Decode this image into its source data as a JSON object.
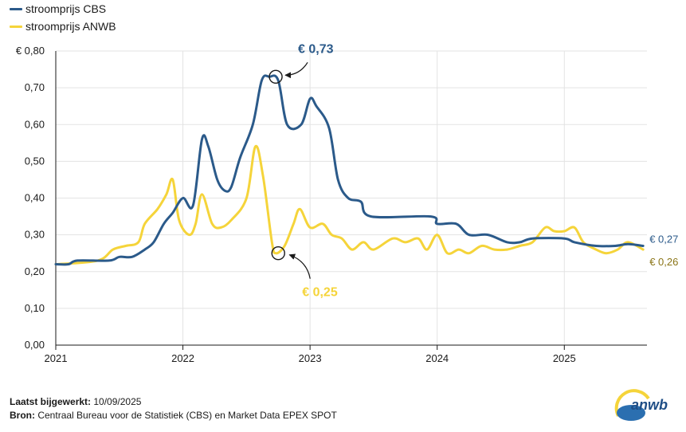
{
  "legend": [
    {
      "label": "stroomprijs CBS",
      "color": "#2b5a8a"
    },
    {
      "label": "stroomprijs ANWB",
      "color": "#f5d43a"
    }
  ],
  "footer": {
    "updated_label": "Laatst bijgewerkt:",
    "updated_value": "10/09/2025",
    "source_label": "Bron:",
    "source_value": "Centraal Bureau voor de Statistiek (CBS) en Market Data EPEX SPOT"
  },
  "logo": {
    "text": "anwb",
    "icon": "anwb-logo"
  },
  "chart_data": {
    "type": "line",
    "title": "",
    "xlabel": "",
    "ylabel": "",
    "xlim": [
      2021.0,
      2025.65
    ],
    "ylim": [
      0,
      0.8
    ],
    "grid": true,
    "legend_position": "top-left",
    "x_ticks": [
      2021,
      2022,
      2023,
      2024,
      2025
    ],
    "y_ticks": [
      {
        "value": 0.0,
        "label": "0,00"
      },
      {
        "value": 0.1,
        "label": "0,10"
      },
      {
        "value": 0.2,
        "label": "0,20"
      },
      {
        "value": 0.3,
        "label": "0,30"
      },
      {
        "value": 0.4,
        "label": "0,40"
      },
      {
        "value": 0.5,
        "label": "0,50"
      },
      {
        "value": 0.6,
        "label": "0,60"
      },
      {
        "value": 0.7,
        "label": "0,70"
      },
      {
        "value": 0.8,
        "label": "€ 0,80"
      }
    ],
    "series": [
      {
        "name": "stroomprijs CBS",
        "color": "#2b5a8a",
        "end_label": "€ 0,27",
        "points": [
          [
            2021.0,
            0.22
          ],
          [
            2021.1,
            0.22
          ],
          [
            2021.17,
            0.23
          ],
          [
            2021.42,
            0.23
          ],
          [
            2021.5,
            0.24
          ],
          [
            2021.6,
            0.24
          ],
          [
            2021.7,
            0.26
          ],
          [
            2021.77,
            0.28
          ],
          [
            2021.85,
            0.33
          ],
          [
            2021.92,
            0.36
          ],
          [
            2022.0,
            0.4
          ],
          [
            2022.08,
            0.38
          ],
          [
            2022.15,
            0.56
          ],
          [
            2022.2,
            0.54
          ],
          [
            2022.27,
            0.45
          ],
          [
            2022.33,
            0.42
          ],
          [
            2022.38,
            0.43
          ],
          [
            2022.45,
            0.51
          ],
          [
            2022.55,
            0.6
          ],
          [
            2022.62,
            0.72
          ],
          [
            2022.68,
            0.73
          ],
          [
            2022.75,
            0.72
          ],
          [
            2022.82,
            0.6
          ],
          [
            2022.93,
            0.6
          ],
          [
            2023.0,
            0.67
          ],
          [
            2023.05,
            0.65
          ],
          [
            2023.15,
            0.59
          ],
          [
            2023.22,
            0.45
          ],
          [
            2023.3,
            0.4
          ],
          [
            2023.4,
            0.39
          ],
          [
            2023.48,
            0.35
          ],
          [
            2023.95,
            0.35
          ],
          [
            2024.0,
            0.33
          ],
          [
            2024.15,
            0.33
          ],
          [
            2024.25,
            0.3
          ],
          [
            2024.4,
            0.3
          ],
          [
            2024.55,
            0.28
          ],
          [
            2024.65,
            0.28
          ],
          [
            2024.75,
            0.29
          ],
          [
            2025.0,
            0.29
          ],
          [
            2025.08,
            0.28
          ],
          [
            2025.25,
            0.27
          ],
          [
            2025.4,
            0.27
          ],
          [
            2025.5,
            0.275
          ],
          [
            2025.62,
            0.27
          ]
        ]
      },
      {
        "name": "stroomprijs ANWB",
        "color": "#f5d43a",
        "end_label": "€ 0,26",
        "points": [
          [
            2021.0,
            0.22
          ],
          [
            2021.33,
            0.23
          ],
          [
            2021.45,
            0.26
          ],
          [
            2021.55,
            0.27
          ],
          [
            2021.65,
            0.28
          ],
          [
            2021.7,
            0.33
          ],
          [
            2021.8,
            0.37
          ],
          [
            2021.87,
            0.41
          ],
          [
            2021.92,
            0.45
          ],
          [
            2021.97,
            0.34
          ],
          [
            2022.05,
            0.3
          ],
          [
            2022.1,
            0.33
          ],
          [
            2022.15,
            0.41
          ],
          [
            2022.23,
            0.33
          ],
          [
            2022.3,
            0.32
          ],
          [
            2022.38,
            0.34
          ],
          [
            2022.5,
            0.4
          ],
          [
            2022.57,
            0.54
          ],
          [
            2022.63,
            0.46
          ],
          [
            2022.7,
            0.28
          ],
          [
            2022.73,
            0.25
          ],
          [
            2022.8,
            0.27
          ],
          [
            2022.87,
            0.33
          ],
          [
            2022.92,
            0.37
          ],
          [
            2023.0,
            0.32
          ],
          [
            2023.1,
            0.33
          ],
          [
            2023.17,
            0.3
          ],
          [
            2023.25,
            0.29
          ],
          [
            2023.33,
            0.26
          ],
          [
            2023.42,
            0.28
          ],
          [
            2023.5,
            0.26
          ],
          [
            2023.65,
            0.29
          ],
          [
            2023.75,
            0.28
          ],
          [
            2023.85,
            0.29
          ],
          [
            2023.92,
            0.26
          ],
          [
            2024.0,
            0.3
          ],
          [
            2024.08,
            0.25
          ],
          [
            2024.17,
            0.26
          ],
          [
            2024.25,
            0.25
          ],
          [
            2024.35,
            0.27
          ],
          [
            2024.45,
            0.26
          ],
          [
            2024.55,
            0.26
          ],
          [
            2024.65,
            0.27
          ],
          [
            2024.75,
            0.28
          ],
          [
            2024.85,
            0.32
          ],
          [
            2024.92,
            0.31
          ],
          [
            2025.0,
            0.31
          ],
          [
            2025.08,
            0.32
          ],
          [
            2025.15,
            0.28
          ],
          [
            2025.25,
            0.26
          ],
          [
            2025.33,
            0.25
          ],
          [
            2025.42,
            0.26
          ],
          [
            2025.5,
            0.28
          ],
          [
            2025.62,
            0.26
          ]
        ]
      }
    ],
    "annotations": [
      {
        "text": "€ 0,73",
        "x": 2022.73,
        "y": 0.73,
        "series": "stroomprijs CBS",
        "color": "#2b5a8a"
      },
      {
        "text": "€ 0,25",
        "x": 2022.75,
        "y": 0.25,
        "series": "stroomprijs ANWB",
        "color": "#f5d43a"
      }
    ]
  }
}
